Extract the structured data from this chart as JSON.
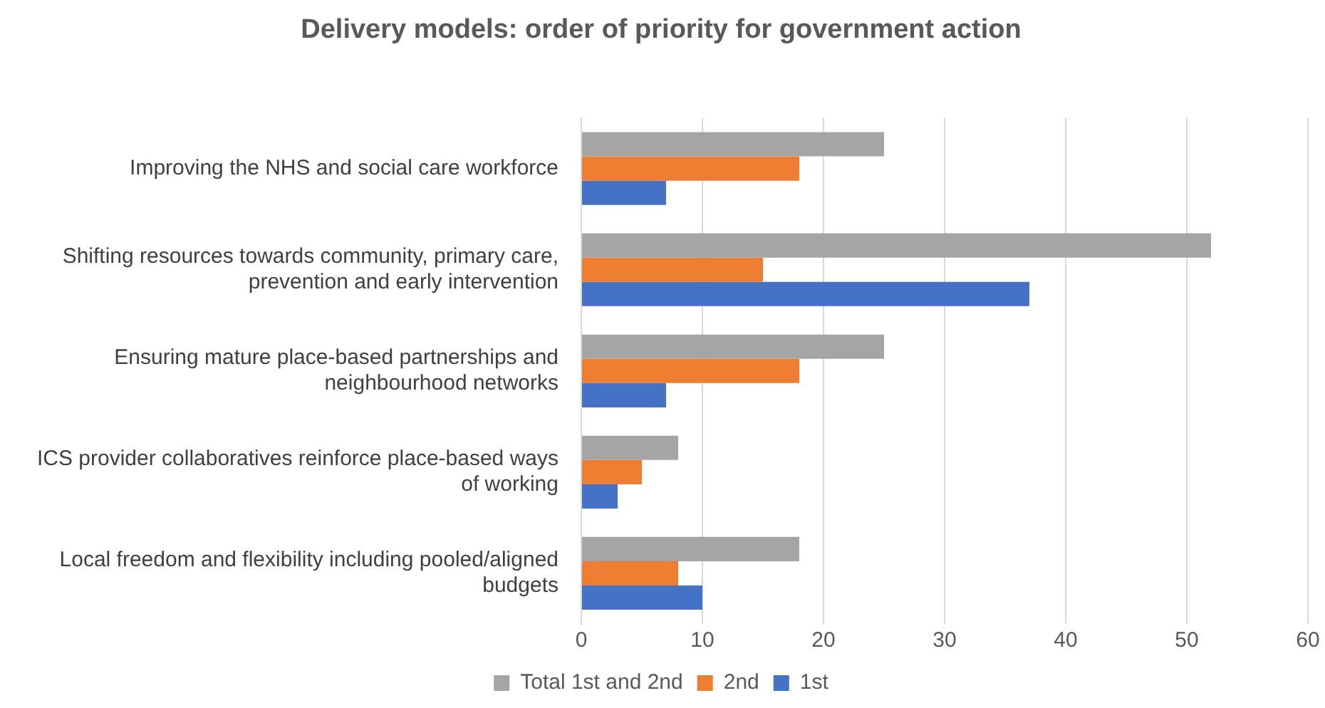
{
  "chart_data": {
    "type": "bar",
    "orientation": "horizontal",
    "title": "Delivery models: order of priority for government action",
    "categories": [
      "Improving the NHS and social care workforce",
      "Shifting resources towards community, primary care, prevention and early intervention",
      "Ensuring mature place-based partnerships and neighbourhood networks",
      "ICS provider collaboratives reinforce place-based ways of working",
      "Local freedom and flexibility including pooled/aligned budgets"
    ],
    "series": [
      {
        "name": "Total 1st and 2nd",
        "color": "#a5a5a5",
        "values": [
          25,
          52,
          25,
          8,
          18
        ]
      },
      {
        "name": "2nd",
        "color": "#ed7d31",
        "values": [
          18,
          15,
          18,
          5,
          8
        ]
      },
      {
        "name": "1st",
        "color": "#4472c4",
        "values": [
          7,
          37,
          7,
          3,
          10
        ]
      }
    ],
    "xlim": [
      0,
      60
    ],
    "xticks": [
      0,
      10,
      20,
      30,
      40,
      50,
      60
    ],
    "grid": "x",
    "legend": "bottom"
  }
}
